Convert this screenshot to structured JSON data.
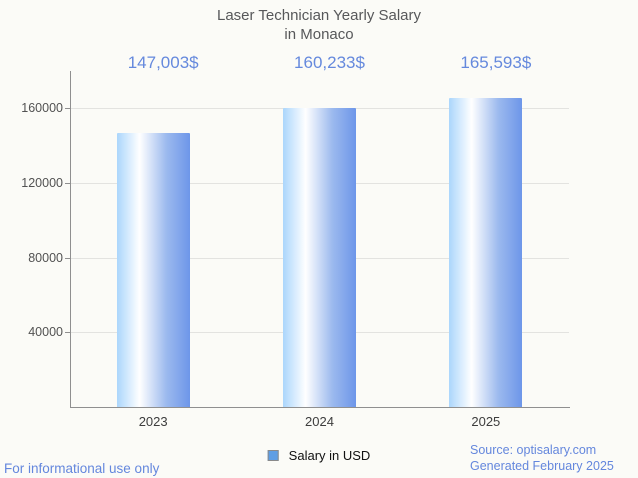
{
  "title": {
    "line1": "Laser Technician Yearly Salary",
    "line2": "in Monaco"
  },
  "chart_data": {
    "type": "bar",
    "title": "Laser Technician Yearly Salary in Monaco",
    "categories": [
      "2023",
      "2024",
      "2025"
    ],
    "values": [
      147003,
      160233,
      165593
    ],
    "value_labels": [
      "147,003$",
      "160,233$",
      "165,593$"
    ],
    "series": [
      {
        "name": "Salary in USD",
        "values": [
          147003,
          160233,
          165593
        ]
      }
    ],
    "xlabel": "",
    "ylabel": "",
    "ylim": [
      0,
      180000
    ],
    "yticks": [
      40000,
      80000,
      120000,
      160000
    ],
    "ytick_labels": [
      "40000",
      "80000",
      "120000",
      "160000"
    ],
    "grid": true,
    "legend_position": "bottom"
  },
  "legend": {
    "label": "Salary in USD",
    "swatch_color": "#5f9ee4"
  },
  "footer": {
    "disclaimer": "For informational use only",
    "source": "Source: optisalary.com",
    "generated": "Generated February 2025"
  },
  "colors": {
    "background": "#fbfbf7",
    "bar_gradient_left": "#abd6fc",
    "bar_gradient_mid": "#ffffff",
    "bar_gradient_right": "#6d96e9",
    "value_label": "#6589dd",
    "footer_text": "#6487dd",
    "axis_line": "#8f8f8f",
    "grid_line": "#e3e3e0",
    "title_text": "#57585a"
  }
}
